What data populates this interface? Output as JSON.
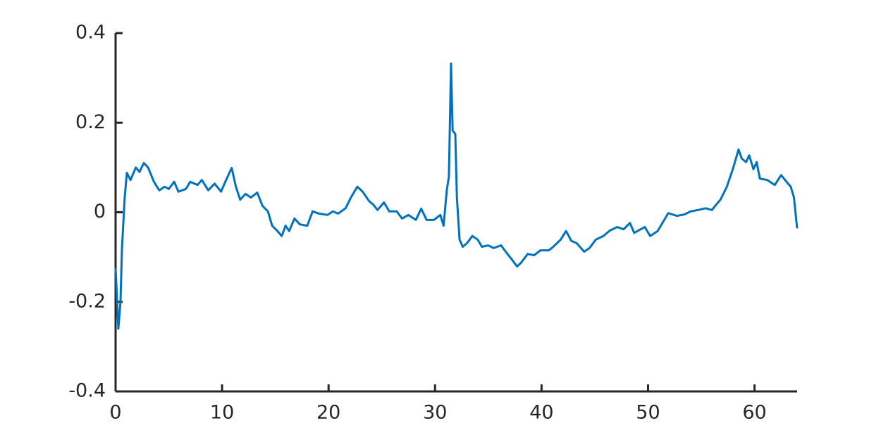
{
  "chart_data": {
    "type": "line",
    "x": [
      0,
      0.26,
      0.46,
      0.6,
      0.86,
      1.06,
      1.4,
      1.9,
      2.25,
      2.65,
      3.05,
      3.6,
      4.1,
      4.6,
      5.0,
      5.5,
      5.9,
      6.6,
      7.0,
      7.7,
      8.1,
      8.7,
      9.3,
      9.9,
      10.3,
      10.9,
      11.3,
      11.7,
      12.2,
      12.7,
      13.3,
      13.8,
      14.3,
      14.7,
      15.2,
      15.6,
      15.96,
      16.3,
      16.8,
      17.3,
      18.0,
      18.5,
      19.1,
      19.9,
      20.4,
      20.9,
      21.6,
      22.1,
      22.7,
      23.2,
      23.8,
      24.2,
      24.6,
      25.2,
      25.7,
      26.4,
      26.9,
      27.5,
      28.2,
      28.7,
      29.2,
      29.9,
      30.5,
      30.8,
      31.1,
      31.3,
      31.5,
      31.65,
      31.9,
      32.05,
      32.3,
      32.6,
      33.0,
      33.5,
      34.0,
      34.4,
      35.0,
      35.5,
      36.2,
      36.7,
      37.2,
      37.7,
      38.1,
      38.7,
      39.3,
      39.9,
      40.7,
      41.1,
      41.8,
      42.3,
      42.8,
      43.3,
      44.0,
      44.5,
      45.1,
      45.8,
      46.4,
      47.1,
      47.7,
      48.3,
      48.7,
      49.7,
      50.2,
      50.9,
      51.4,
      51.9,
      52.7,
      53.4,
      54.0,
      54.7,
      55.4,
      56.0,
      56.4,
      56.8,
      57.4,
      58.0,
      58.5,
      58.8,
      59.2,
      59.5,
      59.9,
      60.2,
      60.5,
      61.2,
      61.9,
      62.5,
      63.0,
      63.4,
      63.7,
      64.0
    ],
    "series": [
      {
        "color": "#0072bd",
        "values": [
          -0.125,
          -0.26,
          -0.2,
          -0.08,
          0.035,
          0.088,
          0.072,
          0.1,
          0.09,
          0.11,
          0.1,
          0.068,
          0.049,
          0.057,
          0.052,
          0.068,
          0.046,
          0.052,
          0.068,
          0.061,
          0.072,
          0.049,
          0.064,
          0.046,
          0.068,
          0.099,
          0.057,
          0.028,
          0.041,
          0.033,
          0.044,
          0.014,
          0.002,
          -0.03,
          -0.042,
          -0.053,
          -0.03,
          -0.042,
          -0.014,
          -0.027,
          -0.03,
          0.002,
          -0.003,
          -0.006,
          0.002,
          -0.003,
          0.009,
          0.033,
          0.057,
          0.046,
          0.025,
          0.017,
          0.005,
          0.022,
          0.002,
          0.002,
          -0.014,
          -0.006,
          -0.017,
          0.008,
          -0.017,
          -0.017,
          -0.006,
          -0.03,
          0.049,
          0.08,
          0.332,
          0.182,
          0.175,
          0.033,
          -0.061,
          -0.077,
          -0.069,
          -0.053,
          -0.061,
          -0.077,
          -0.074,
          -0.08,
          -0.074,
          -0.09,
          -0.105,
          -0.121,
          -0.112,
          -0.093,
          -0.096,
          -0.085,
          -0.085,
          -0.077,
          -0.061,
          -0.042,
          -0.064,
          -0.069,
          -0.088,
          -0.08,
          -0.061,
          -0.053,
          -0.041,
          -0.033,
          -0.038,
          -0.024,
          -0.046,
          -0.033,
          -0.053,
          -0.042,
          -0.022,
          -0.002,
          -0.008,
          -0.005,
          0.002,
          0.005,
          0.009,
          0.005,
          0.017,
          0.028,
          0.057,
          0.099,
          0.14,
          0.12,
          0.112,
          0.127,
          0.096,
          0.112,
          0.075,
          0.072,
          0.061,
          0.083,
          0.068,
          0.057,
          0.033,
          -0.036
        ]
      }
    ],
    "xlim": [
      0,
      64
    ],
    "xticks": [
      0,
      10,
      20,
      30,
      40,
      50,
      60
    ],
    "ylim": [
      -0.4,
      0.4
    ],
    "yticks": [
      -0.4,
      -0.2,
      0,
      0.2,
      0.4
    ]
  }
}
